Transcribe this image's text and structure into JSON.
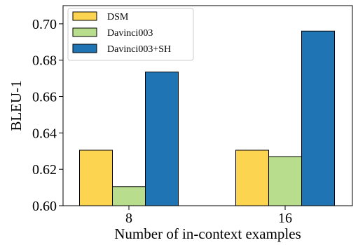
{
  "chart_data": {
    "type": "bar",
    "xlabel": "Number of in-context examples",
    "ylabel": "BLEU-1",
    "categories": [
      "8",
      "16"
    ],
    "ylim": [
      0.6,
      0.71
    ],
    "yticks": [
      "0.60",
      "0.62",
      "0.64",
      "0.66",
      "0.68",
      "0.70"
    ],
    "grid": false,
    "legend_position": "top-left",
    "series": [
      {
        "name": "DSM",
        "color": "#FDD44F",
        "values": [
          0.6305,
          0.6305
        ]
      },
      {
        "name": "Davinci003",
        "color": "#B8DE8D",
        "values": [
          0.6105,
          0.627
        ]
      },
      {
        "name": "Davinci003+SH",
        "color": "#1F74B4",
        "values": [
          0.6735,
          0.696
        ]
      }
    ]
  }
}
